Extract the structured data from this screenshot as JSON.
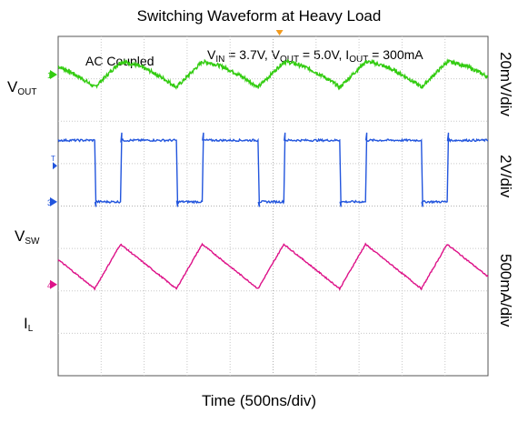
{
  "chart_data": {
    "type": "line",
    "title": "Switching Waveform at Heavy Load",
    "xlabel": "Time (500ns/div)",
    "x_divisions": 10,
    "y_divisions": 8,
    "annotation_note": "AC Coupled",
    "conditions": {
      "vin_label": "V",
      "vin_sub": "IN",
      "vin_value": " = 3.7V, ",
      "vout_label": "V",
      "vout_sub": "OUT",
      "vout_value": " = 5.0V, ",
      "iout_label": "I",
      "iout_sub": "OUT",
      "iout_value": " = 300mA"
    },
    "channels": [
      {
        "name": "V",
        "sub": "OUT",
        "scale": "20mV/div",
        "marker": "1",
        "color": "#33cc11",
        "ground_div": 7.1,
        "shape": "ripple",
        "amplitude_div": 0.6
      },
      {
        "name": "V",
        "sub": "SW",
        "scale": "2V/div",
        "marker": "3",
        "color": "#2255dd",
        "ground_div": 4.1,
        "shape": "square",
        "high_div": 1.45,
        "low_div": 0.0
      },
      {
        "name": "I",
        "sub": "L",
        "scale": "500mA/div",
        "marker": "4",
        "color": "#dd1188",
        "ground_div": 2.15,
        "shape": "triangle",
        "peak_div": 3.1,
        "valley_div": 2.05
      }
    ],
    "switching": {
      "period_div": 1.9,
      "rising_edges_div": [
        1.45,
        3.35,
        5.25,
        7.15,
        9.05
      ],
      "falling_edges_div": [
        0.85,
        2.75,
        4.65,
        6.55,
        8.45
      ],
      "glitch_markers": [
        "T"
      ]
    },
    "trigger_marker_div": 5.15
  }
}
